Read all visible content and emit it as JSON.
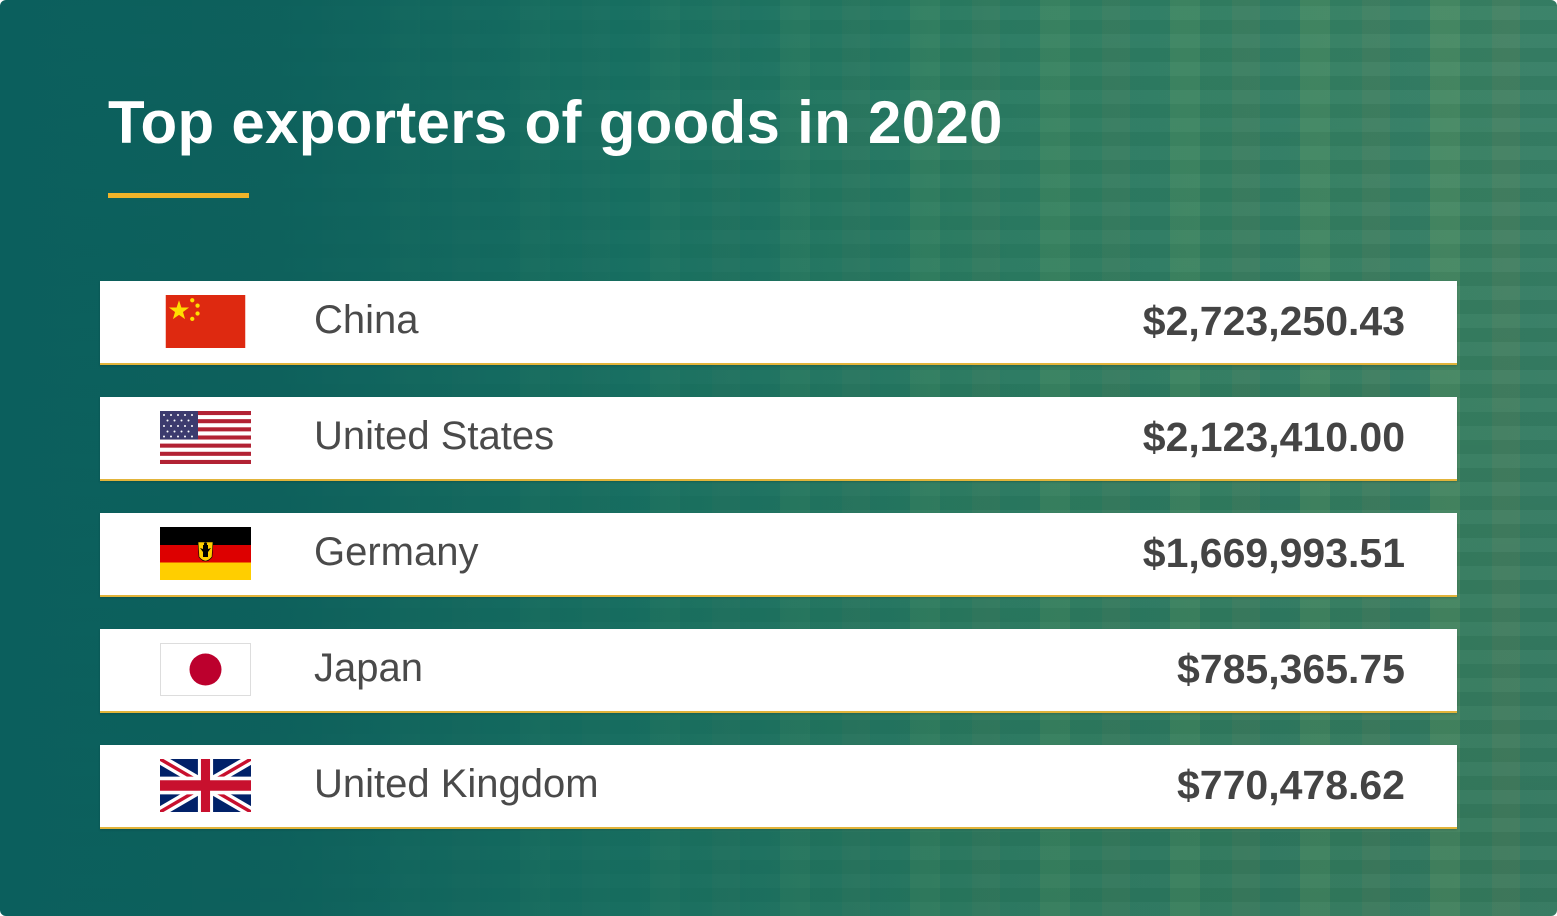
{
  "header": {
    "title": "Top exporters of goods in 2020",
    "accent_color": "#f0b429"
  },
  "exporters": [
    {
      "country": "China",
      "value": "$2,723,250.43",
      "flag_icon": "china-flag-icon"
    },
    {
      "country": "United States",
      "value": "$2,123,410.00",
      "flag_icon": "usa-flag-icon"
    },
    {
      "country": "Germany",
      "value": "$1,669,993.51",
      "flag_icon": "germany-flag-icon"
    },
    {
      "country": "Japan",
      "value": "$785,365.75",
      "flag_icon": "japan-flag-icon"
    },
    {
      "country": "United Kingdom",
      "value": "$770,478.62",
      "flag_icon": "uk-flag-icon"
    }
  ]
}
